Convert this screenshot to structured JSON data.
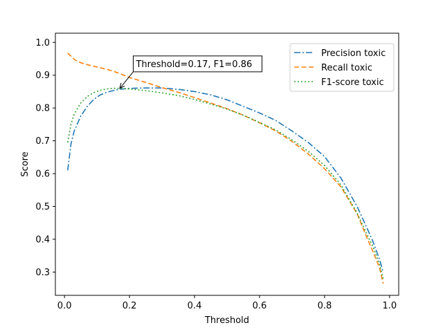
{
  "chart_data": {
    "type": "line",
    "title": "",
    "xlabel": "Threshold",
    "ylabel": "Score",
    "xlim": [
      -0.028,
      1.028
    ],
    "ylim": [
      0.229,
      1.028
    ],
    "xticks": [
      0.0,
      0.2,
      0.4,
      0.6,
      0.8,
      1.0
    ],
    "xtick_labels": [
      "0.0",
      "0.2",
      "0.4",
      "0.6",
      "0.8",
      "1.0"
    ],
    "yticks": [
      0.3,
      0.4,
      0.5,
      0.6,
      0.7,
      0.8,
      0.9,
      1.0
    ],
    "ytick_labels": [
      "0.3",
      "0.4",
      "0.5",
      "0.6",
      "0.7",
      "0.8",
      "0.9",
      "1.0"
    ],
    "grid": false,
    "legend_position": "top-right",
    "series": [
      {
        "name": "Precision toxic",
        "color": "#1f77b4",
        "dash": "dashdot",
        "x": [
          0.01,
          0.02,
          0.03,
          0.05,
          0.07,
          0.09,
          0.11,
          0.13,
          0.15,
          0.17,
          0.2,
          0.25,
          0.3,
          0.35,
          0.4,
          0.45,
          0.5,
          0.55,
          0.6,
          0.65,
          0.7,
          0.75,
          0.8,
          0.85,
          0.9,
          0.93,
          0.95,
          0.97,
          0.98
        ],
        "y": [
          0.61,
          0.69,
          0.73,
          0.775,
          0.805,
          0.826,
          0.84,
          0.848,
          0.853,
          0.857,
          0.86,
          0.861,
          0.861,
          0.857,
          0.85,
          0.84,
          0.825,
          0.805,
          0.785,
          0.762,
          0.73,
          0.695,
          0.652,
          0.587,
          0.5,
          0.435,
          0.39,
          0.335,
          0.3
        ]
      },
      {
        "name": "Recall toxic",
        "color": "#ff7f0e",
        "dash": "dashed",
        "x": [
          0.01,
          0.02,
          0.03,
          0.05,
          0.07,
          0.1,
          0.13,
          0.15,
          0.17,
          0.2,
          0.25,
          0.3,
          0.35,
          0.4,
          0.45,
          0.5,
          0.55,
          0.6,
          0.65,
          0.7,
          0.75,
          0.8,
          0.85,
          0.9,
          0.93,
          0.95,
          0.97,
          0.98
        ],
        "y": [
          0.967,
          0.958,
          0.948,
          0.938,
          0.932,
          0.925,
          0.918,
          0.912,
          0.905,
          0.893,
          0.878,
          0.862,
          0.848,
          0.832,
          0.815,
          0.798,
          0.778,
          0.755,
          0.73,
          0.698,
          0.66,
          0.615,
          0.56,
          0.478,
          0.405,
          0.36,
          0.31,
          0.265
        ]
      },
      {
        "name": "F1-score toxic",
        "color": "#2ca02c",
        "dash": "dotted",
        "x": [
          0.01,
          0.02,
          0.03,
          0.05,
          0.07,
          0.09,
          0.11,
          0.13,
          0.15,
          0.17,
          0.2,
          0.25,
          0.3,
          0.35,
          0.4,
          0.45,
          0.5,
          0.55,
          0.6,
          0.65,
          0.7,
          0.75,
          0.8,
          0.85,
          0.9,
          0.93,
          0.95,
          0.97,
          0.98
        ],
        "y": [
          0.695,
          0.75,
          0.782,
          0.815,
          0.835,
          0.847,
          0.854,
          0.858,
          0.86,
          0.86,
          0.858,
          0.853,
          0.846,
          0.838,
          0.826,
          0.812,
          0.797,
          0.778,
          0.756,
          0.733,
          0.703,
          0.668,
          0.625,
          0.566,
          0.48,
          0.415,
          0.375,
          0.32,
          0.28
        ]
      }
    ],
    "annotation": {
      "text": "Threshold=0.17, F1=0.86",
      "point": {
        "x": 0.17,
        "y": 0.86
      },
      "text_anchor": {
        "x": 0.22,
        "y": 0.925
      }
    }
  }
}
